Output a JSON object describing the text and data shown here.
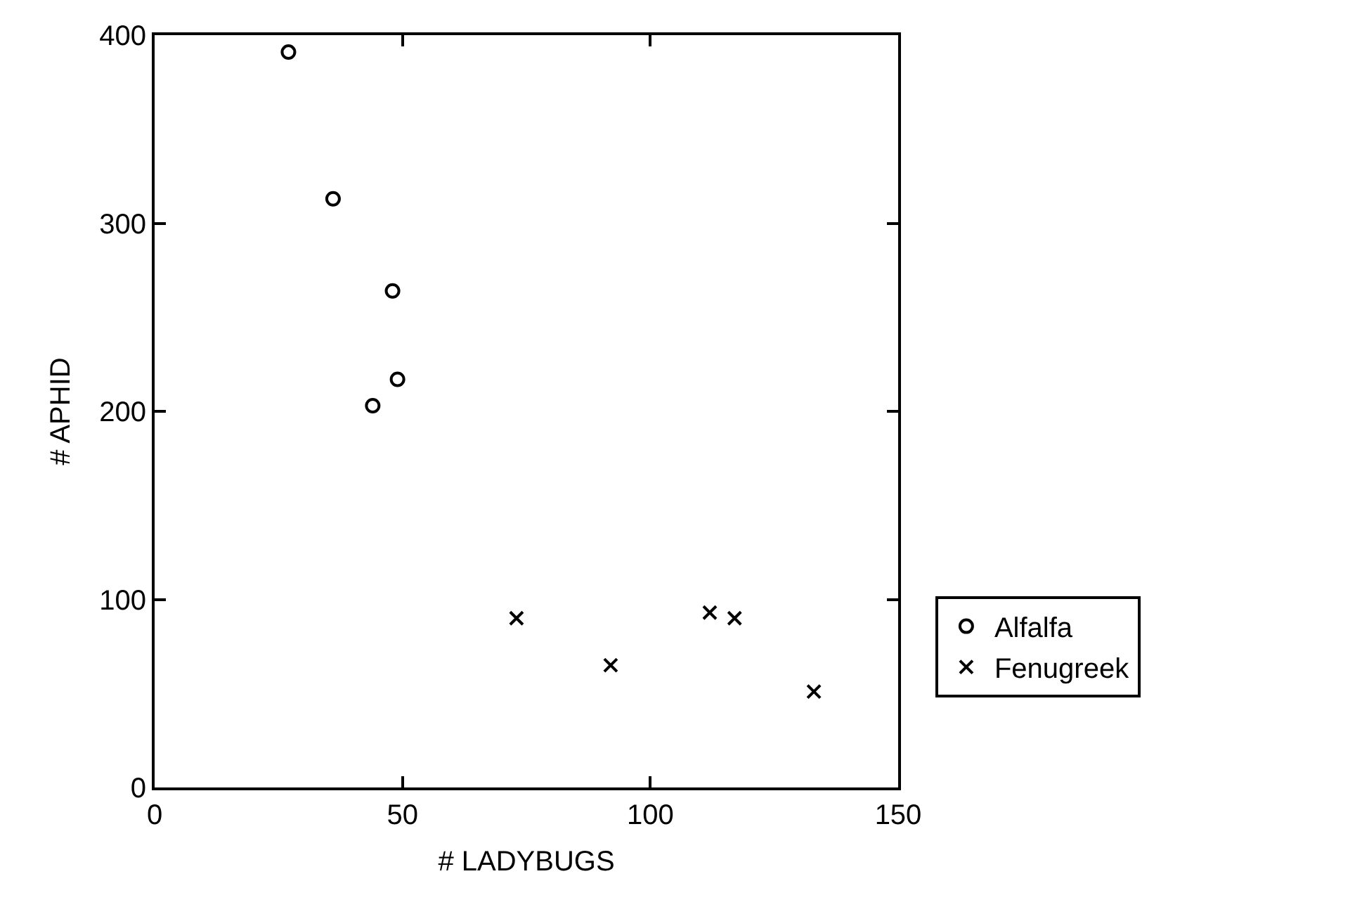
{
  "chart_data": {
    "type": "scatter",
    "xlabel": "# LADYBUGS",
    "ylabel": "# APHID",
    "xlim": [
      0,
      150
    ],
    "xticks": [
      0,
      50,
      100,
      150
    ],
    "ylim": [
      0,
      400
    ],
    "yticks": [
      0,
      100,
      200,
      300,
      400
    ],
    "legend": "bottom right",
    "series": [
      {
        "name": "Alfalfa",
        "color": "#000000",
        "marker": "circle",
        "x": [
          27,
          36,
          48,
          49,
          44
        ],
        "values": [
          391,
          313,
          264,
          217,
          203
        ]
      },
      {
        "name": "Fenugreek",
        "color": "#000000",
        "marker": "cross",
        "x": [
          73,
          92,
          112,
          117,
          133
        ],
        "values": [
          90,
          65,
          93,
          90,
          51
        ]
      }
    ]
  }
}
